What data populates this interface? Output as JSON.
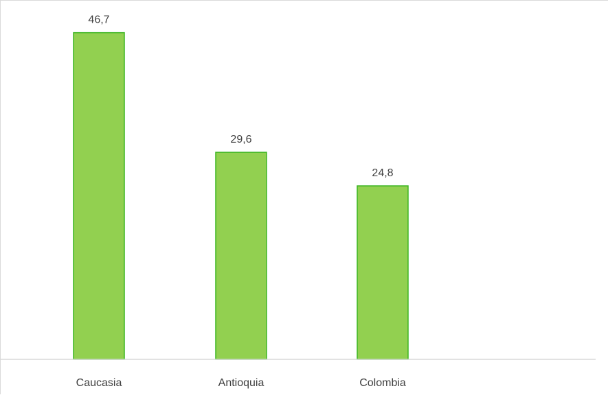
{
  "chart_data": {
    "type": "bar",
    "title": "",
    "xlabel": "",
    "ylabel": "",
    "categories": [
      "Caucasia",
      "Antioquia",
      "Colombia"
    ],
    "series": [
      {
        "values": [
          46.7,
          29.6,
          24.8
        ],
        "labels": [
          "46,7",
          "29,6",
          "24,8"
        ],
        "color": "#92d050",
        "edge_color": "#3cb521"
      }
    ],
    "ylim": [
      0,
      50
    ],
    "grid": false,
    "legend": "none"
  }
}
